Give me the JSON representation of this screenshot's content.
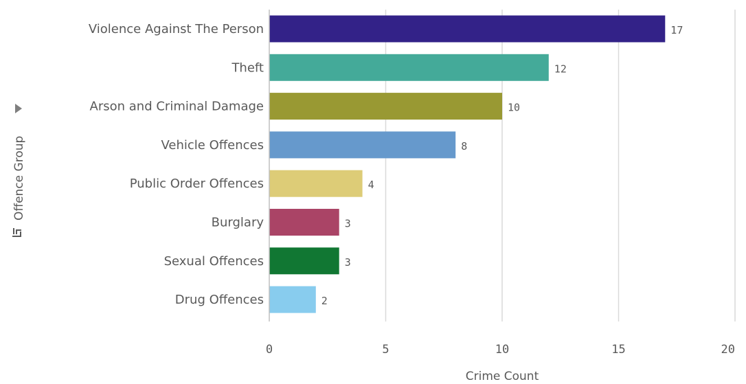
{
  "chart_data": {
    "type": "bar",
    "orientation": "horizontal",
    "categories": [
      "Violence Against The Person",
      "Theft",
      "Arson and Criminal Damage",
      "Vehicle Offences",
      "Public Order Offences",
      "Burglary",
      "Sexual Offences",
      "Drug Offences"
    ],
    "values": [
      17,
      12,
      10,
      8,
      4,
      3,
      3,
      2
    ],
    "colors": [
      "#332288",
      "#44aa99",
      "#999933",
      "#6699cc",
      "#ddcc77",
      "#aa4466",
      "#117733",
      "#88ccee"
    ],
    "xlabel": "Crime Count",
    "ylabel": "Offence Group",
    "xlim": [
      0,
      20
    ],
    "xticks": [
      "0",
      "5",
      "10",
      "15",
      "20"
    ],
    "grid": true,
    "data_labels": true
  },
  "y_axis_icons": {
    "menu": "triangle-right-icon",
    "sort": "sort-icon"
  }
}
